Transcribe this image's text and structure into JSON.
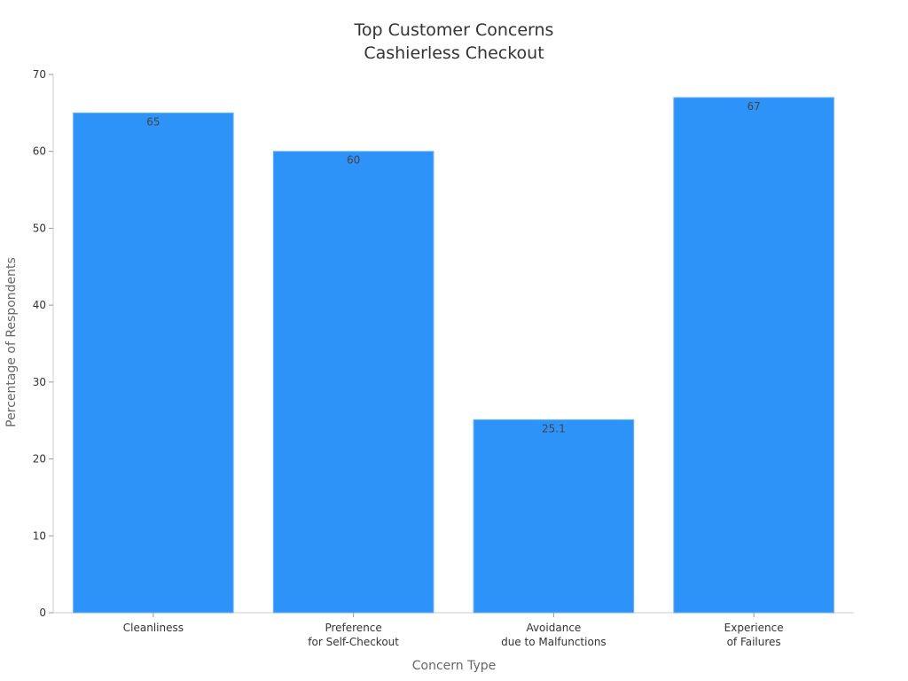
{
  "chart_data": {
    "type": "bar",
    "title": [
      "Top Customer Concerns",
      "Cashierless Checkout"
    ],
    "xlabel": "Concern Type",
    "ylabel": "Percentage of Respondents",
    "categories": [
      [
        "Cleanliness"
      ],
      [
        "Preference",
        "for Self-Checkout"
      ],
      [
        "Avoidance",
        "due to Malfunctions"
      ],
      [
        "Experience",
        "of Failures"
      ]
    ],
    "values": [
      65,
      60,
      25.1,
      67
    ],
    "value_labels": [
      "65",
      "60",
      "25.1",
      "67"
    ],
    "ylim": [
      0,
      70
    ],
    "yticks": [
      0,
      10,
      20,
      30,
      40,
      50,
      60,
      70
    ],
    "grid": false,
    "bar_color": "#2e93f9"
  }
}
